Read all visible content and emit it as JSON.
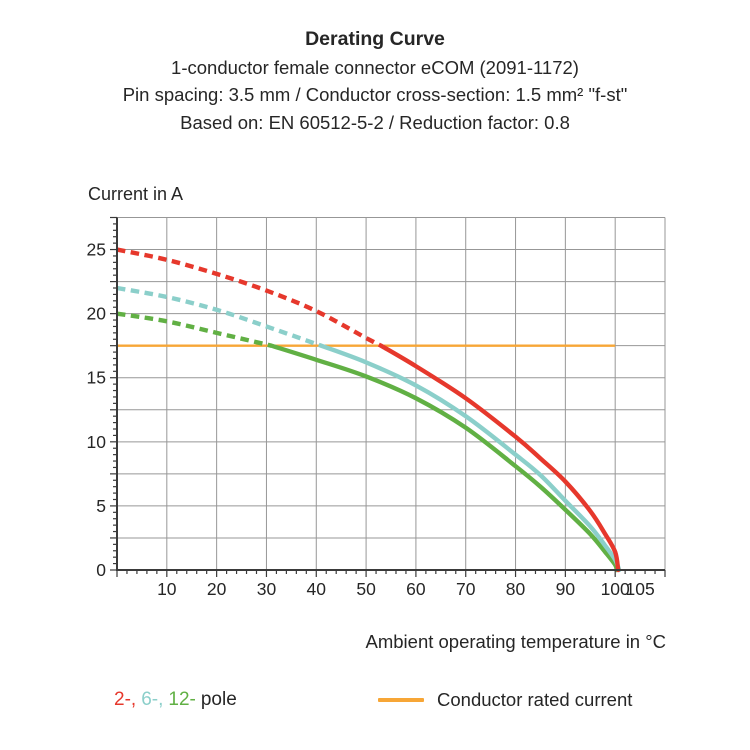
{
  "header": {
    "title": "Derating Curve",
    "line2": "1-conductor female connector eCOM (2091-1172)",
    "line3": "Pin spacing: 3.5 mm / Conductor cross-section: 1.5 mm² \"f-st\"",
    "line4": "Based on: EN 60512-5-2 / Reduction factor: 0.8"
  },
  "colors": {
    "pole2": "#e6382c",
    "pole6": "#8bcfca",
    "pole12": "#61b044",
    "rated_line": "#f7a636",
    "grid": "#979797",
    "axis": "#3a3a3a",
    "text": "#262626"
  },
  "chart_data": {
    "type": "line",
    "title": "Derating Curve",
    "xlabel": "Ambient operating temperature in °C",
    "ylabel": "Current in A",
    "xlim": [
      0,
      110
    ],
    "ylim": [
      0,
      27.5
    ],
    "grid": true,
    "x_grid_step": 10,
    "y_grid_step": 2.5,
    "x_minor_tick_step": 2,
    "y_minor_tick_step": 0.5,
    "x_tick_labels": [
      10,
      20,
      30,
      40,
      50,
      60,
      70,
      80,
      90,
      100,
      105
    ],
    "y_tick_labels": [
      0,
      5,
      10,
      15,
      20,
      25
    ],
    "reference_line": {
      "name": "Conductor rated current",
      "y": 17.5,
      "x_start": 0,
      "x_end": 100
    },
    "series": [
      {
        "name": "12-pole",
        "color": "#61b044",
        "dashed_until_x": 31,
        "points": [
          [
            0,
            20
          ],
          [
            10,
            19.4
          ],
          [
            20,
            18.5
          ],
          [
            31,
            17.5
          ],
          [
            40,
            16.4
          ],
          [
            50,
            15.1
          ],
          [
            60,
            13.4
          ],
          [
            70,
            11.1
          ],
          [
            80,
            8.1
          ],
          [
            85,
            6.5
          ],
          [
            90,
            4.7
          ],
          [
            95,
            2.8
          ],
          [
            98,
            1.4
          ],
          [
            100,
            0.4
          ],
          [
            100.3,
            0
          ]
        ]
      },
      {
        "name": "6-pole",
        "color": "#8bcfca",
        "dashed_until_x": 41,
        "points": [
          [
            0,
            22
          ],
          [
            10,
            21.3
          ],
          [
            20,
            20.3
          ],
          [
            30,
            19.0
          ],
          [
            41,
            17.5
          ],
          [
            50,
            16.2
          ],
          [
            60,
            14.4
          ],
          [
            70,
            12.0
          ],
          [
            80,
            9.0
          ],
          [
            85,
            7.4
          ],
          [
            90,
            5.4
          ],
          [
            95,
            3.4
          ],
          [
            98,
            1.9
          ],
          [
            100,
            0.8
          ],
          [
            100.8,
            0
          ]
        ]
      },
      {
        "name": "2-pole",
        "color": "#e6382c",
        "dashed_until_x": 53,
        "points": [
          [
            0,
            25
          ],
          [
            10,
            24.2
          ],
          [
            20,
            23.1
          ],
          [
            30,
            21.8
          ],
          [
            40,
            20.2
          ],
          [
            50,
            18.1
          ],
          [
            53,
            17.5
          ],
          [
            60,
            15.9
          ],
          [
            70,
            13.4
          ],
          [
            80,
            10.4
          ],
          [
            85,
            8.7
          ],
          [
            90,
            6.9
          ],
          [
            95,
            4.6
          ],
          [
            98,
            2.8
          ],
          [
            100,
            1.4
          ],
          [
            100.6,
            0
          ]
        ]
      }
    ]
  },
  "legend": {
    "poles": [
      {
        "label": "2-,",
        "color": "#e6382c"
      },
      {
        "label": "6-,",
        "color": "#8bcfca"
      },
      {
        "label": "12-",
        "color": "#61b044"
      },
      {
        "label": "pole",
        "color": "#262626"
      }
    ],
    "rated_label": "Conductor rated current"
  }
}
